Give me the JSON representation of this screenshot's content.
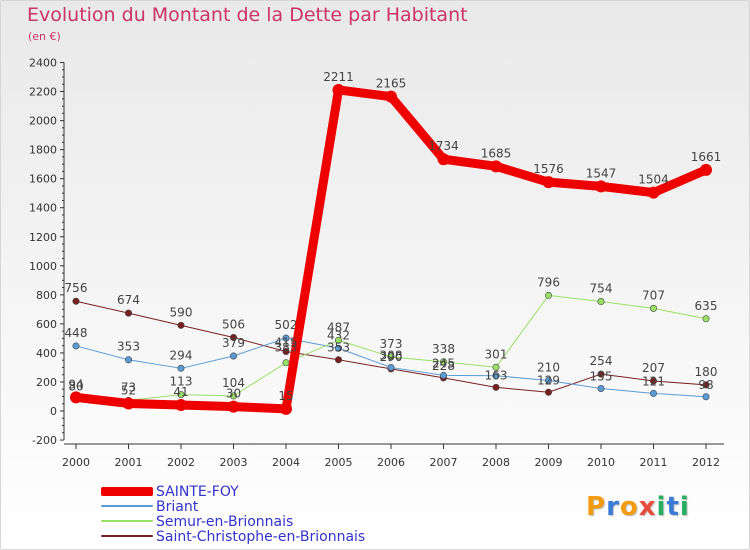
{
  "title": "Evolution du Montant de la Dette par Habitant",
  "subtitle": "(en €)",
  "brand": {
    "text": "Proxiti",
    "colors": [
      "#f39c12",
      "#3a7bd5",
      "#f39c12",
      "#e74c3c",
      "#27ae60",
      "#3a7bd5",
      "#27ae60"
    ]
  },
  "chart_data": {
    "type": "line",
    "x": [
      2000,
      2001,
      2002,
      2003,
      2004,
      2005,
      2006,
      2007,
      2008,
      2009,
      2010,
      2011,
      2012
    ],
    "ylim": [
      -200,
      2400
    ],
    "yticks": [
      -200,
      0,
      200,
      400,
      600,
      800,
      1000,
      1200,
      1400,
      1600,
      1800,
      2000,
      2200,
      2400
    ],
    "grid": false,
    "legend": "bottom-left",
    "series": [
      {
        "name": "Saint-Christophe-en-Brionnais",
        "color": "#7a1f1f",
        "width": 1,
        "values": [
          756,
          674,
          590,
          506,
          410,
          353,
          290,
          228,
          163,
          129,
          254,
          207,
          180
        ],
        "labels": [
          "756",
          "674",
          "590",
          "506",
          "",
          "",
          "",
          "",
          "",
          "",
          "254",
          "207",
          "180"
        ]
      },
      {
        "name": "Briant",
        "color": "#5b9bd5",
        "width": 1,
        "values": [
          448,
          353,
          294,
          379,
          502,
          432,
          300,
          245,
          243,
          210,
          155,
          121,
          98
        ],
        "labels": [
          "448",
          "353",
          "294",
          "379",
          "502",
          "432",
          "",
          "",
          "",
          "210",
          "",
          "",
          ""
        ]
      },
      {
        "name": "Semur-en-Brionnais",
        "color": "#99e066",
        "width": 1,
        "values": [
          80,
          73,
          113,
          104,
          332,
          487,
          373,
          338,
          301,
          796,
          754,
          707,
          635
        ],
        "labels": [
          "80",
          "73",
          "113",
          "104",
          "",
          "487",
          "373",
          "338",
          "301",
          "796",
          "754",
          "707",
          "635"
        ]
      },
      {
        "name": "SAINTE-FOY",
        "color": "#ee0000",
        "width": 9,
        "values": [
          94,
          52,
          41,
          30,
          15,
          2211,
          2165,
          1734,
          1685,
          1576,
          1547,
          1504,
          1661
        ],
        "labels": [
          "94",
          "52",
          "41",
          "30",
          "15",
          "2211",
          "2165",
          "1734",
          "1685",
          "1576",
          "1547",
          "1504",
          "1661"
        ]
      }
    ],
    "extra_labels": [
      "415",
      "383",
      "353",
      "290",
      "308",
      "228",
      "245",
      "163",
      "129",
      "155",
      "121",
      "98"
    ]
  },
  "legend_items": [
    {
      "name": "SAINTE-FOY",
      "color": "#ee0000",
      "width": 9
    },
    {
      "name": "Briant",
      "color": "#5b9bd5",
      "width": 2
    },
    {
      "name": "Semur-en-Brionnais",
      "color": "#99e066",
      "width": 2
    },
    {
      "name": "Saint-Christophe-en-Brionnais",
      "color": "#7a1f1f",
      "width": 2
    }
  ]
}
